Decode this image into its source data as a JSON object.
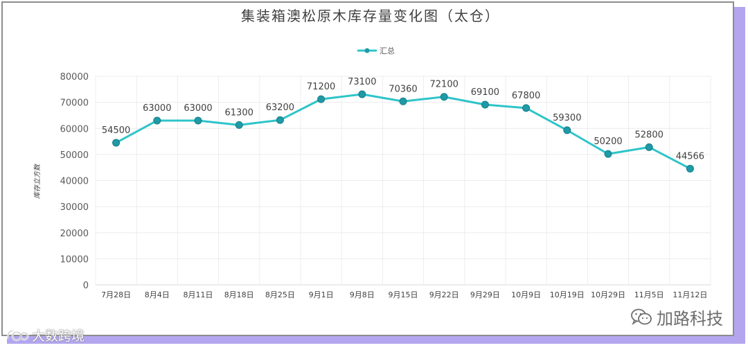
{
  "chart_data": {
    "type": "line",
    "title": "集装箱澳松原木库存量变化图（太仓）",
    "ylabel": "库存立方数",
    "xlabel": "",
    "legend": {
      "position": "top-center",
      "entries": [
        "汇总"
      ]
    },
    "grid": true,
    "ylim": [
      0,
      80000
    ],
    "yticks": [
      "0",
      "10000",
      "20000",
      "30000",
      "40000",
      "50000",
      "60000",
      "70000",
      "80000"
    ],
    "categories": [
      "7月28日",
      "8月4日",
      "8月11日",
      "8月18日",
      "8月25日",
      "9月1日",
      "9月8日",
      "9月15日",
      "9月22日",
      "9月29日",
      "10月9日",
      "10月19日",
      "10月29日",
      "11月5日",
      "11月12日"
    ],
    "series": [
      {
        "name": "汇总",
        "values": [
          54500,
          63000,
          63000,
          61300,
          63200,
          71200,
          73100,
          70360,
          72100,
          69100,
          67800,
          59300,
          50200,
          52800,
          44566
        ],
        "labels": [
          "54500",
          "63000",
          "63000",
          "61300",
          "63200",
          "71200",
          "73100",
          "70360",
          "72100",
          "69100",
          "67800",
          "59300",
          "50200",
          "52800",
          "44566"
        ],
        "color": "#2ec4c9",
        "marker_color": "#1f9aa6"
      }
    ]
  },
  "watermarks": {
    "right_text": "加路科技",
    "left_text": "大数跨境",
    "left_icon": "logo-icon",
    "right_icon": "wechat-icon"
  }
}
